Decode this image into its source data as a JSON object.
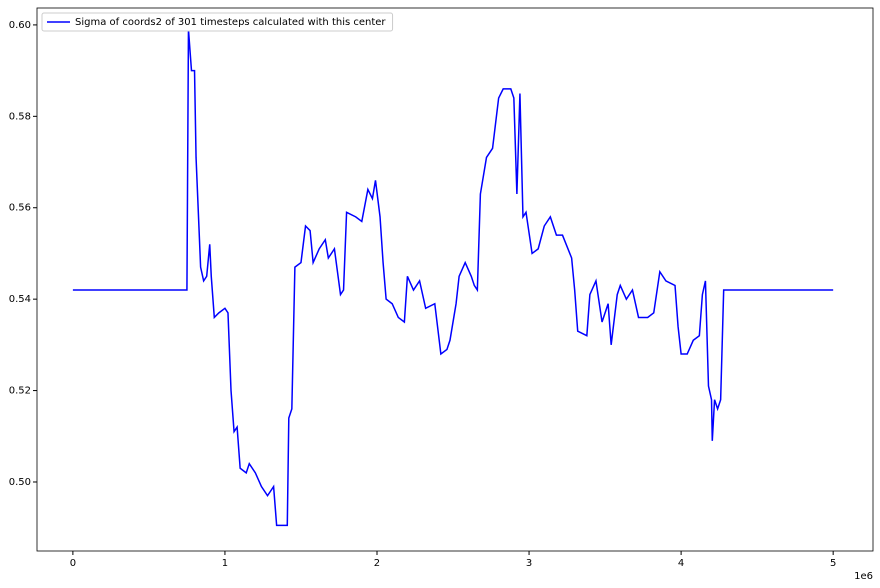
{
  "chart_data": {
    "type": "line",
    "x": [
      0,
      0.75,
      0.76,
      0.78,
      0.8,
      0.81,
      0.83,
      0.84,
      0.86,
      0.88,
      0.9,
      0.91,
      0.93,
      0.96,
      1.0,
      1.02,
      1.04,
      1.06,
      1.08,
      1.1,
      1.14,
      1.16,
      1.2,
      1.24,
      1.28,
      1.3,
      1.32,
      1.34,
      1.41,
      1.42,
      1.44,
      1.46,
      1.5,
      1.53,
      1.56,
      1.58,
      1.62,
      1.66,
      1.68,
      1.72,
      1.76,
      1.78,
      1.8,
      1.86,
      1.9,
      1.94,
      1.97,
      1.99,
      2.02,
      2.04,
      2.06,
      2.1,
      2.14,
      2.18,
      2.2,
      2.24,
      2.28,
      2.32,
      2.38,
      2.42,
      2.46,
      2.48,
      2.52,
      2.54,
      2.58,
      2.62,
      2.64,
      2.66,
      2.68,
      2.72,
      2.76,
      2.8,
      2.83,
      2.88,
      2.9,
      2.92,
      2.94,
      2.96,
      2.98,
      3.02,
      3.06,
      3.1,
      3.14,
      3.18,
      3.22,
      3.28,
      3.3,
      3.32,
      3.38,
      3.4,
      3.44,
      3.48,
      3.52,
      3.54,
      3.58,
      3.6,
      3.64,
      3.68,
      3.72,
      3.78,
      3.82,
      3.86,
      3.9,
      3.96,
      3.98,
      4.0,
      4.04,
      4.08,
      4.12,
      4.14,
      4.16,
      4.18,
      4.2,
      4.205,
      4.22,
      4.24,
      4.26,
      4.28,
      5.0
    ],
    "series": [
      {
        "name": "Sigma of coords2 of 301 timesteps calculated with this center",
        "color": "#0000ff",
        "values": [
          0.542,
          0.542,
          0.599,
          0.59,
          0.59,
          0.571,
          0.555,
          0.547,
          0.544,
          0.545,
          0.552,
          0.545,
          0.536,
          0.537,
          0.538,
          0.537,
          0.52,
          0.511,
          0.512,
          0.503,
          0.502,
          0.504,
          0.502,
          0.499,
          0.497,
          0.498,
          0.499,
          0.4905,
          0.4905,
          0.514,
          0.516,
          0.547,
          0.548,
          0.556,
          0.555,
          0.548,
          0.551,
          0.553,
          0.549,
          0.551,
          0.541,
          0.542,
          0.559,
          0.558,
          0.557,
          0.564,
          0.562,
          0.566,
          0.558,
          0.548,
          0.54,
          0.539,
          0.536,
          0.535,
          0.545,
          0.542,
          0.544,
          0.538,
          0.539,
          0.528,
          0.529,
          0.531,
          0.539,
          0.545,
          0.548,
          0.545,
          0.543,
          0.542,
          0.563,
          0.571,
          0.573,
          0.584,
          0.586,
          0.586,
          0.584,
          0.563,
          0.585,
          0.558,
          0.559,
          0.55,
          0.551,
          0.556,
          0.558,
          0.554,
          0.554,
          0.549,
          0.542,
          0.533,
          0.532,
          0.541,
          0.544,
          0.535,
          0.539,
          0.53,
          0.541,
          0.543,
          0.54,
          0.542,
          0.536,
          0.536,
          0.537,
          0.546,
          0.544,
          0.543,
          0.534,
          0.528,
          0.528,
          0.531,
          0.532,
          0.541,
          0.544,
          0.521,
          0.518,
          0.509,
          0.518,
          0.516,
          0.518,
          0.542,
          0.542
        ]
      }
    ],
    "xlim": [
      -0.236,
      5.262
    ],
    "xticks": [
      0,
      1,
      2,
      3,
      4,
      5
    ],
    "x_offset_label": "1e6",
    "ylim": [
      0.4849,
      0.6037
    ],
    "yticks": [
      {
        "value": 0.5,
        "label": "0.50"
      },
      0.52,
      0.54,
      0.56,
      0.58,
      {
        "value": 0.6,
        "label": "0.60"
      }
    ],
    "legend": "upper left"
  }
}
